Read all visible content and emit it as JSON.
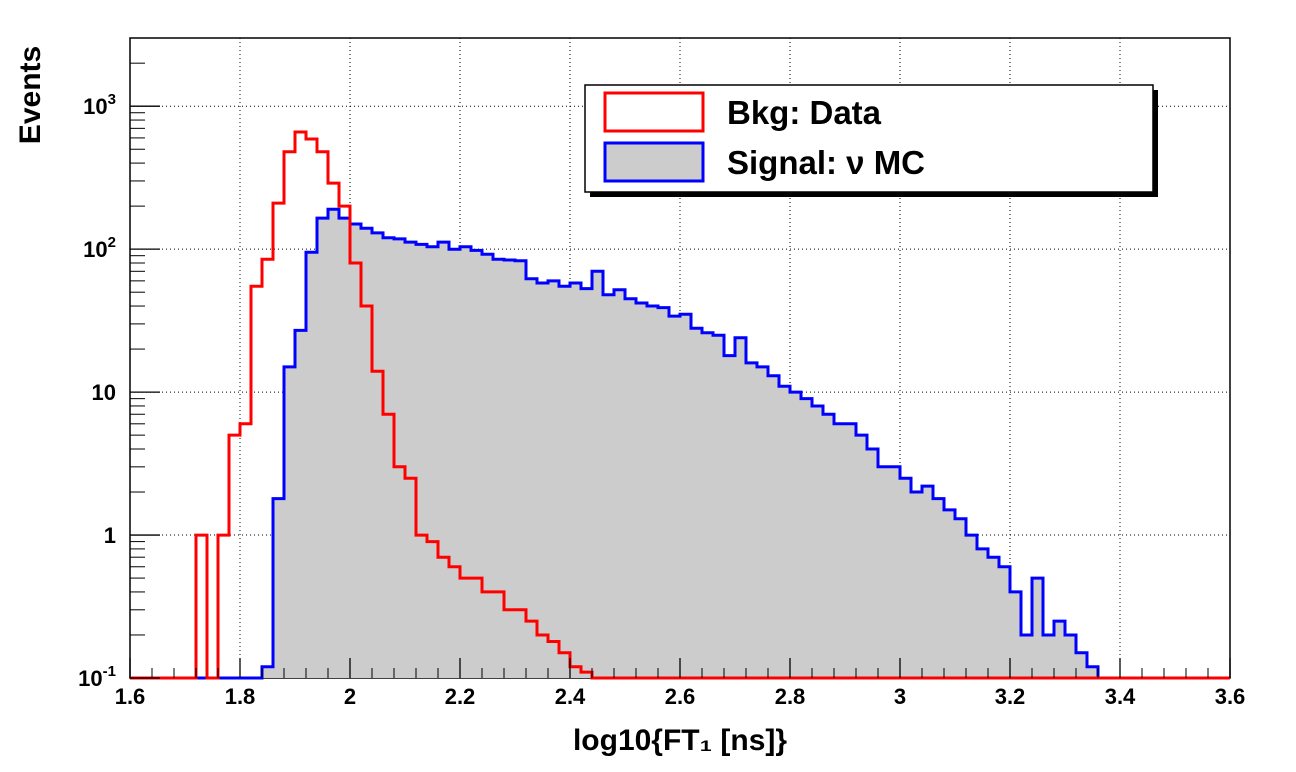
{
  "chart_data": {
    "type": "histogram",
    "xlabel": "log10{FT₁ [ns]}",
    "ylabel": "Events",
    "xlim": [
      1.6,
      3.6
    ],
    "ylim": [
      0.1,
      3000
    ],
    "y_scale": "log",
    "grid": true,
    "legend_position": "top-right",
    "bin_edges_start": 1.6,
    "bin_width": 0.02,
    "x_ticks": [
      {
        "value": 1.6,
        "label": "1.6"
      },
      {
        "value": 1.8,
        "label": "1.8"
      },
      {
        "value": 2.0,
        "label": "2"
      },
      {
        "value": 2.2,
        "label": "2.2"
      },
      {
        "value": 2.4,
        "label": "2.4"
      },
      {
        "value": 2.6,
        "label": "2.6"
      },
      {
        "value": 2.8,
        "label": "2.8"
      },
      {
        "value": 3.0,
        "label": "3"
      },
      {
        "value": 3.2,
        "label": "3.2"
      },
      {
        "value": 3.4,
        "label": "3.4"
      },
      {
        "value": 3.6,
        "label": "3.6"
      }
    ],
    "y_ticks": [
      {
        "value": 0.1,
        "base": "10",
        "exp": "-1"
      },
      {
        "value": 1,
        "base": "1",
        "exp": ""
      },
      {
        "value": 10,
        "base": "10",
        "exp": ""
      },
      {
        "value": 100,
        "base": "10",
        "exp": "2"
      },
      {
        "value": 1000,
        "base": "10",
        "exp": "3"
      }
    ],
    "series": [
      {
        "name": "Bkg: Data",
        "color": "#ff0000",
        "fill": "none",
        "values": [
          0,
          0,
          0,
          0,
          0,
          0,
          1,
          0,
          1,
          5,
          6,
          55,
          85,
          210,
          480,
          660,
          590,
          480,
          290,
          200,
          80,
          40,
          14,
          7,
          3,
          2.5,
          1,
          0.9,
          0.7,
          0.6,
          0.5,
          0.5,
          0.4,
          0.4,
          0.3,
          0.3,
          0.25,
          0.2,
          0.18,
          0.15,
          0.12,
          0.11,
          0.1,
          0.1,
          0.1,
          0.1,
          0.1,
          0.1,
          0.1,
          0.1,
          0.1,
          0.1,
          0.1,
          0.1,
          0.1,
          0.1,
          0.1,
          0.1,
          0.1,
          0.1,
          0.1,
          0.1,
          0.1,
          0.1,
          0.1,
          0.1,
          0.1,
          0.1,
          0.1,
          0.1,
          0.1,
          0.1,
          0.1,
          0.1,
          0.1,
          0.1,
          0.1,
          0.1,
          0.1,
          0.1,
          0.1,
          0.1,
          0.1,
          0.1,
          0.1,
          0.1,
          0.1,
          0.1,
          0.1,
          0.1,
          0.1,
          0.1,
          0.1,
          0.1,
          0.1,
          0.1,
          0.1,
          0.1,
          0.1,
          0.1
        ]
      },
      {
        "name": "Signal: ν MC",
        "color": "#0000ff",
        "fill": "#cccccc",
        "values": [
          0,
          0,
          0,
          0,
          0,
          0,
          0,
          0,
          0,
          0,
          0,
          0,
          0.12,
          1.8,
          15,
          27,
          95,
          165,
          190,
          165,
          150,
          140,
          130,
          120,
          118,
          112,
          108,
          104,
          112,
          100,
          104,
          98,
          92,
          85,
          84,
          83,
          62,
          58,
          60,
          55,
          58,
          53,
          70,
          48,
          52,
          45,
          42,
          40,
          39,
          34,
          35,
          28,
          26,
          25,
          18,
          24,
          16,
          15,
          13,
          11,
          10,
          9,
          8,
          7,
          6,
          6,
          5,
          4,
          3,
          3,
          2.5,
          2,
          2.2,
          1.8,
          1.5,
          1.3,
          1,
          0.8,
          0.7,
          0.6,
          0.4,
          0.2,
          0.5,
          0.2,
          0.25,
          0.2,
          0.15,
          0.12,
          0.1,
          0.1,
          0.1,
          0.1,
          0.1,
          0.1,
          0.1,
          0.1,
          0.1,
          0.1,
          0.1,
          0.1
        ]
      }
    ]
  }
}
